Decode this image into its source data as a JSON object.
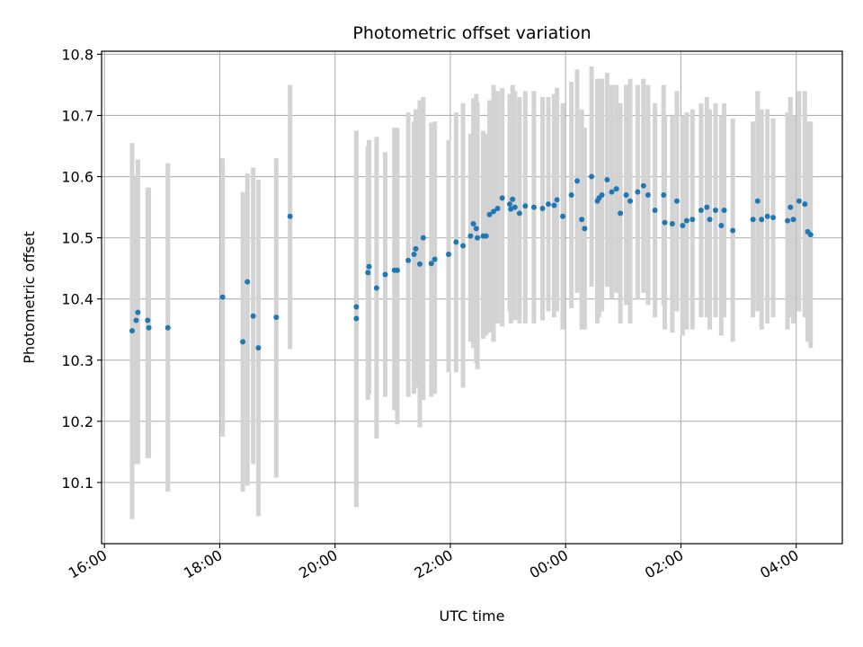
{
  "chart_data": {
    "type": "scatter",
    "title": "Photometric offset variation",
    "xlabel": "UTC time",
    "ylabel": "Photometric offset",
    "x_unit": "hours since 00:00 (negative = previous day)",
    "xlim": [
      -8.05,
      4.8
    ],
    "ylim": [
      10.0,
      10.805
    ],
    "grid": true,
    "x_ticks": [
      {
        "value": -8,
        "label": "16:00"
      },
      {
        "value": -6,
        "label": "18:00"
      },
      {
        "value": -4,
        "label": "20:00"
      },
      {
        "value": -2,
        "label": "22:00"
      },
      {
        "value": 0,
        "label": "00:00"
      },
      {
        "value": 2,
        "label": "02:00"
      },
      {
        "value": 4,
        "label": "04:00"
      }
    ],
    "y_ticks": [
      {
        "value": 10.1,
        "label": "10.1"
      },
      {
        "value": 10.2,
        "label": "10.2"
      },
      {
        "value": 10.3,
        "label": "10.3"
      },
      {
        "value": 10.4,
        "label": "10.4"
      },
      {
        "value": 10.5,
        "label": "10.5"
      },
      {
        "value": 10.6,
        "label": "10.6"
      },
      {
        "value": 10.7,
        "label": "10.7"
      },
      {
        "value": 10.8,
        "label": "10.8"
      }
    ],
    "colors": {
      "point": "#1f77b4",
      "errorbar": "#d3d3d3",
      "grid": "#b0b0b0",
      "axes": "#000000"
    },
    "points": [
      [
        -7.52,
        10.348,
        10.04,
        10.655
      ],
      [
        -7.45,
        10.365,
        10.13,
        10.6
      ],
      [
        -7.42,
        10.378,
        10.13,
        10.628
      ],
      [
        -7.25,
        10.365,
        10.14,
        10.582
      ],
      [
        -7.23,
        10.353,
        10.14,
        10.582
      ],
      [
        -6.9,
        10.353,
        10.085,
        10.622
      ],
      [
        -5.95,
        10.403,
        10.175,
        10.63
      ],
      [
        -5.6,
        10.33,
        10.085,
        10.575
      ],
      [
        -5.52,
        10.428,
        10.095,
        10.605
      ],
      [
        -5.42,
        10.372,
        10.13,
        10.615
      ],
      [
        -5.33,
        10.32,
        10.045,
        10.595
      ],
      [
        -5.02,
        10.37,
        10.108,
        10.63
      ],
      [
        -4.78,
        10.535,
        10.318,
        10.75
      ],
      [
        -3.63,
        10.387,
        10.06,
        10.675
      ],
      [
        -3.63,
        10.368,
        10.06,
        10.675
      ],
      [
        -3.43,
        10.443,
        10.235,
        10.65
      ],
      [
        -3.41,
        10.453,
        10.245,
        10.66
      ],
      [
        -3.28,
        10.418,
        10.172,
        10.665
      ],
      [
        -3.13,
        10.44,
        10.24,
        10.64
      ],
      [
        -2.97,
        10.447,
        10.218,
        10.68
      ],
      [
        -2.92,
        10.447,
        10.195,
        10.68
      ],
      [
        -2.73,
        10.463,
        10.24,
        10.705
      ],
      [
        -2.6,
        10.482,
        10.255,
        10.71
      ],
      [
        -2.63,
        10.473,
        10.245,
        10.69
      ],
      [
        -2.53,
        10.457,
        10.19,
        10.725
      ],
      [
        -2.47,
        10.5,
        10.235,
        10.73
      ],
      [
        -2.33,
        10.458,
        10.24,
        10.688
      ],
      [
        -2.27,
        10.465,
        10.245,
        10.69
      ],
      [
        -2.03,
        10.473,
        10.28,
        10.66
      ],
      [
        -1.9,
        10.493,
        10.28,
        10.705
      ],
      [
        -1.78,
        10.487,
        10.255,
        10.72
      ],
      [
        -1.65,
        10.503,
        10.33,
        10.67
      ],
      [
        -1.6,
        10.523,
        10.32,
        10.728
      ],
      [
        -1.55,
        10.515,
        10.295,
        10.735
      ],
      [
        -1.53,
        10.5,
        10.285,
        10.722
      ],
      [
        -1.43,
        10.503,
        10.335,
        10.675
      ],
      [
        -1.38,
        10.503,
        10.34,
        10.67
      ],
      [
        -1.32,
        10.538,
        10.345,
        10.725
      ],
      [
        -1.25,
        10.543,
        10.33,
        10.75
      ],
      [
        -1.18,
        10.548,
        10.36,
        10.74
      ],
      [
        -1.1,
        10.565,
        10.355,
        10.745
      ],
      [
        -0.97,
        10.555,
        10.38,
        10.735
      ],
      [
        -0.95,
        10.547,
        10.36,
        10.735
      ],
      [
        -0.92,
        10.563,
        10.38,
        10.75
      ],
      [
        -0.88,
        10.55,
        10.365,
        10.74
      ],
      [
        -0.8,
        10.54,
        10.36,
        10.73
      ],
      [
        -0.7,
        10.552,
        10.36,
        10.74
      ],
      [
        -0.55,
        10.55,
        10.36,
        10.74
      ],
      [
        -0.4,
        10.548,
        10.365,
        10.73
      ],
      [
        -0.3,
        10.555,
        10.38,
        10.73
      ],
      [
        -0.2,
        10.553,
        10.37,
        10.735
      ],
      [
        -0.15,
        10.562,
        10.38,
        10.745
      ],
      [
        -0.05,
        10.535,
        10.35,
        10.72
      ],
      [
        0.1,
        10.57,
        10.385,
        10.755
      ],
      [
        0.2,
        10.593,
        10.41,
        10.775
      ],
      [
        0.28,
        10.53,
        10.35,
        10.71
      ],
      [
        0.33,
        10.515,
        10.35,
        10.68
      ],
      [
        0.45,
        10.6,
        10.42,
        10.78
      ],
      [
        0.55,
        10.56,
        10.36,
        10.76
      ],
      [
        0.58,
        10.565,
        10.37,
        10.76
      ],
      [
        0.63,
        10.57,
        10.38,
        10.76
      ],
      [
        0.72,
        10.595,
        10.42,
        10.77
      ],
      [
        0.8,
        10.575,
        10.4,
        10.75
      ],
      [
        0.88,
        10.58,
        10.41,
        10.75
      ],
      [
        0.95,
        10.54,
        10.36,
        10.72
      ],
      [
        1.05,
        10.57,
        10.39,
        10.75
      ],
      [
        1.12,
        10.56,
        10.36,
        10.76
      ],
      [
        1.25,
        10.575,
        10.4,
        10.75
      ],
      [
        1.35,
        10.585,
        10.41,
        10.76
      ],
      [
        1.43,
        10.57,
        10.39,
        10.75
      ],
      [
        1.55,
        10.545,
        10.37,
        10.72
      ],
      [
        1.7,
        10.57,
        10.39,
        10.75
      ],
      [
        1.72,
        10.525,
        10.35,
        10.7
      ],
      [
        1.85,
        10.523,
        10.345,
        10.7
      ],
      [
        1.93,
        10.56,
        10.38,
        10.74
      ],
      [
        2.03,
        10.52,
        10.34,
        10.7
      ],
      [
        2.1,
        10.528,
        10.35,
        10.705
      ],
      [
        2.2,
        10.53,
        10.35,
        10.71
      ],
      [
        2.35,
        10.545,
        10.37,
        10.72
      ],
      [
        2.45,
        10.55,
        10.37,
        10.73
      ],
      [
        2.5,
        10.53,
        10.35,
        10.71
      ],
      [
        2.6,
        10.545,
        10.37,
        10.72
      ],
      [
        2.7,
        10.52,
        10.34,
        10.7
      ],
      [
        2.75,
        10.545,
        10.37,
        10.72
      ],
      [
        2.9,
        10.512,
        10.33,
        10.695
      ],
      [
        3.25,
        10.53,
        10.37,
        10.69
      ],
      [
        3.33,
        10.56,
        10.38,
        10.74
      ],
      [
        3.4,
        10.53,
        10.35,
        10.71
      ],
      [
        3.5,
        10.535,
        10.36,
        10.71
      ],
      [
        3.6,
        10.533,
        10.37,
        10.695
      ],
      [
        3.85,
        10.528,
        10.35,
        10.705
      ],
      [
        3.9,
        10.55,
        10.37,
        10.73
      ],
      [
        3.95,
        10.53,
        10.36,
        10.7
      ],
      [
        4.05,
        10.56,
        10.38,
        10.74
      ],
      [
        4.15,
        10.555,
        10.37,
        10.74
      ],
      [
        4.2,
        10.51,
        10.33,
        10.69
      ],
      [
        4.25,
        10.505,
        10.32,
        10.69
      ]
    ]
  }
}
